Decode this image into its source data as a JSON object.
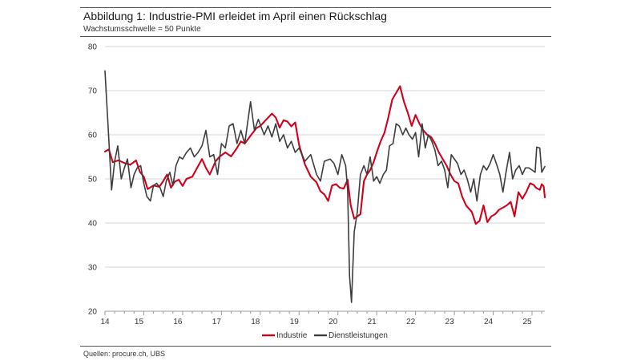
{
  "title": "Abbildung 1: Industrie-PMI erleidet im April einen Rückschlag",
  "subtitle": "Wachstumsschwelle = 50 Punkte",
  "source": "Quellen: procure.ch, UBS",
  "colors": {
    "industrie": "#d0021b",
    "dienstleistungen": "#3d3d3d",
    "grid": "#d6d6d6",
    "axis": "#999999"
  },
  "chart_data": {
    "type": "line",
    "title": "Abbildung 1: Industrie-PMI erleidet im April einen Rückschlag",
    "subtitle": "Wachstumsschwelle = 50 Punkte",
    "xlim": [
      2014,
      2025.33
    ],
    "ylim": [
      20,
      80
    ],
    "yticks": [
      "20",
      "30",
      "40",
      "50",
      "60",
      "70",
      "80"
    ],
    "xticks": [
      "14",
      "15",
      "16",
      "17",
      "18",
      "19",
      "20",
      "21",
      "22",
      "23",
      "24",
      "25"
    ],
    "grid": true,
    "legend_position": "bottom-center",
    "series": [
      {
        "name": "Industrie",
        "points": [
          [
            2014.0,
            56.2
          ],
          [
            2014.1,
            56.7
          ],
          [
            2014.2,
            53.8
          ],
          [
            2014.35,
            54.2
          ],
          [
            2014.5,
            53.6
          ],
          [
            2014.65,
            53.2
          ],
          [
            2014.8,
            54.2
          ],
          [
            2014.9,
            51.6
          ],
          [
            2015.0,
            50.5
          ],
          [
            2015.1,
            47.7
          ],
          [
            2015.25,
            48.5
          ],
          [
            2015.4,
            48.2
          ],
          [
            2015.5,
            49.5
          ],
          [
            2015.6,
            51.0
          ],
          [
            2015.7,
            48.0
          ],
          [
            2015.8,
            49.4
          ],
          [
            2015.9,
            49.8
          ],
          [
            2016.0,
            48.4
          ],
          [
            2016.1,
            50.0
          ],
          [
            2016.25,
            50.5
          ],
          [
            2016.4,
            52.9
          ],
          [
            2016.5,
            54.5
          ],
          [
            2016.6,
            52.5
          ],
          [
            2016.7,
            51.0
          ],
          [
            2016.85,
            54.0
          ],
          [
            2016.95,
            55.0
          ],
          [
            2017.1,
            56.0
          ],
          [
            2017.25,
            55.1
          ],
          [
            2017.4,
            57.0
          ],
          [
            2017.5,
            58.5
          ],
          [
            2017.6,
            58.0
          ],
          [
            2017.75,
            59.8
          ],
          [
            2017.9,
            61.5
          ],
          [
            2018.0,
            62.0
          ],
          [
            2018.15,
            63.4
          ],
          [
            2018.3,
            64.8
          ],
          [
            2018.4,
            63.9
          ],
          [
            2018.5,
            61.6
          ],
          [
            2018.6,
            63.3
          ],
          [
            2018.7,
            63.0
          ],
          [
            2018.8,
            61.9
          ],
          [
            2018.9,
            62.8
          ],
          [
            2019.0,
            57.7
          ],
          [
            2019.15,
            53.3
          ],
          [
            2019.3,
            50.5
          ],
          [
            2019.45,
            49.2
          ],
          [
            2019.55,
            47.2
          ],
          [
            2019.65,
            46.5
          ],
          [
            2019.75,
            45.0
          ],
          [
            2019.85,
            48.5
          ],
          [
            2019.95,
            48.8
          ],
          [
            2020.05,
            48.0
          ],
          [
            2020.15,
            47.8
          ],
          [
            2020.25,
            49.8
          ],
          [
            2020.33,
            44.0
          ],
          [
            2020.42,
            41.0
          ],
          [
            2020.5,
            41.5
          ],
          [
            2020.58,
            42.0
          ],
          [
            2020.67,
            49.5
          ],
          [
            2020.75,
            51.0
          ],
          [
            2020.83,
            52.0
          ],
          [
            2020.92,
            53.8
          ],
          [
            2021.0,
            56.0
          ],
          [
            2021.1,
            58.5
          ],
          [
            2021.2,
            60.5
          ],
          [
            2021.3,
            64.0
          ],
          [
            2021.4,
            68.0
          ],
          [
            2021.5,
            69.5
          ],
          [
            2021.6,
            71.0
          ],
          [
            2021.7,
            67.5
          ],
          [
            2021.8,
            65.0
          ],
          [
            2021.9,
            62.0
          ],
          [
            2022.0,
            64.5
          ],
          [
            2022.1,
            62.5
          ],
          [
            2022.2,
            61.0
          ],
          [
            2022.3,
            60.0
          ],
          [
            2022.4,
            59.5
          ],
          [
            2022.5,
            58.0
          ],
          [
            2022.6,
            56.0
          ],
          [
            2022.7,
            54.5
          ],
          [
            2022.8,
            53.0
          ],
          [
            2022.9,
            51.0
          ],
          [
            2023.0,
            49.5
          ],
          [
            2023.1,
            49.0
          ],
          [
            2023.2,
            46.0
          ],
          [
            2023.3,
            44.0
          ],
          [
            2023.45,
            42.5
          ],
          [
            2023.55,
            39.8
          ],
          [
            2023.65,
            40.5
          ],
          [
            2023.75,
            44.0
          ],
          [
            2023.85,
            40.2
          ],
          [
            2023.95,
            41.5
          ],
          [
            2024.05,
            42.0
          ],
          [
            2024.15,
            43.0
          ],
          [
            2024.25,
            43.5
          ],
          [
            2024.35,
            44.0
          ],
          [
            2024.45,
            44.8
          ],
          [
            2024.55,
            41.5
          ],
          [
            2024.65,
            47.0
          ],
          [
            2024.75,
            45.5
          ],
          [
            2024.85,
            47.0
          ],
          [
            2024.95,
            49.0
          ],
          [
            2025.05,
            48.6
          ],
          [
            2025.1,
            48.0
          ],
          [
            2025.2,
            47.5
          ],
          [
            2025.25,
            48.8
          ],
          [
            2025.3,
            48.3
          ],
          [
            2025.33,
            45.8
          ]
        ]
      },
      {
        "name": "Dienstleistungen",
        "points": [
          [
            2014.0,
            74.5
          ],
          [
            2014.08,
            62.0
          ],
          [
            2014.17,
            47.5
          ],
          [
            2014.25,
            54.0
          ],
          [
            2014.33,
            57.5
          ],
          [
            2014.42,
            50.0
          ],
          [
            2014.5,
            52.5
          ],
          [
            2014.58,
            54.5
          ],
          [
            2014.67,
            48.0
          ],
          [
            2014.75,
            51.0
          ],
          [
            2014.83,
            52.5
          ],
          [
            2014.92,
            53.0
          ],
          [
            2015.0,
            49.0
          ],
          [
            2015.08,
            46.0
          ],
          [
            2015.17,
            45.0
          ],
          [
            2015.25,
            48.5
          ],
          [
            2015.33,
            49.0
          ],
          [
            2015.42,
            48.0
          ],
          [
            2015.5,
            46.0
          ],
          [
            2015.58,
            49.5
          ],
          [
            2015.67,
            51.5
          ],
          [
            2015.75,
            48.5
          ],
          [
            2015.83,
            53.0
          ],
          [
            2015.92,
            55.0
          ],
          [
            2016.0,
            54.5
          ],
          [
            2016.1,
            56.0
          ],
          [
            2016.2,
            57.0
          ],
          [
            2016.3,
            55.0
          ],
          [
            2016.4,
            56.0
          ],
          [
            2016.5,
            57.5
          ],
          [
            2016.6,
            61.0
          ],
          [
            2016.7,
            55.0
          ],
          [
            2016.8,
            55.5
          ],
          [
            2016.9,
            51.0
          ],
          [
            2017.0,
            58.0
          ],
          [
            2017.1,
            57.0
          ],
          [
            2017.2,
            62.0
          ],
          [
            2017.3,
            62.5
          ],
          [
            2017.4,
            58.0
          ],
          [
            2017.5,
            61.0
          ],
          [
            2017.6,
            58.0
          ],
          [
            2017.75,
            67.5
          ],
          [
            2017.85,
            61.0
          ],
          [
            2017.95,
            63.5
          ],
          [
            2018.1,
            60.0
          ],
          [
            2018.2,
            62.0
          ],
          [
            2018.3,
            59.5
          ],
          [
            2018.4,
            62.5
          ],
          [
            2018.5,
            58.5
          ],
          [
            2018.6,
            60.0
          ],
          [
            2018.7,
            57.0
          ],
          [
            2018.8,
            58.5
          ],
          [
            2018.9,
            56.0
          ],
          [
            2019.0,
            57.0
          ],
          [
            2019.15,
            54.0
          ],
          [
            2019.3,
            55.5
          ],
          [
            2019.45,
            51.0
          ],
          [
            2019.55,
            49.5
          ],
          [
            2019.65,
            54.0
          ],
          [
            2019.8,
            54.5
          ],
          [
            2019.9,
            53.5
          ],
          [
            2020.0,
            51.0
          ],
          [
            2020.1,
            55.5
          ],
          [
            2020.2,
            53.0
          ],
          [
            2020.25,
            47.5
          ],
          [
            2020.3,
            28.0
          ],
          [
            2020.35,
            22.0
          ],
          [
            2020.42,
            38.0
          ],
          [
            2020.5,
            42.5
          ],
          [
            2020.58,
            51.0
          ],
          [
            2020.67,
            53.0
          ],
          [
            2020.75,
            51.0
          ],
          [
            2020.83,
            55.0
          ],
          [
            2020.92,
            49.5
          ],
          [
            2021.0,
            50.5
          ],
          [
            2021.08,
            49.0
          ],
          [
            2021.17,
            51.0
          ],
          [
            2021.25,
            52.0
          ],
          [
            2021.33,
            57.5
          ],
          [
            2021.42,
            58.0
          ],
          [
            2021.5,
            62.5
          ],
          [
            2021.58,
            62.0
          ],
          [
            2021.67,
            60.0
          ],
          [
            2021.75,
            61.5
          ],
          [
            2021.83,
            60.0
          ],
          [
            2021.92,
            59.0
          ],
          [
            2022.0,
            60.5
          ],
          [
            2022.08,
            55.0
          ],
          [
            2022.17,
            62.5
          ],
          [
            2022.25,
            57.0
          ],
          [
            2022.33,
            60.0
          ],
          [
            2022.42,
            58.5
          ],
          [
            2022.5,
            56.5
          ],
          [
            2022.58,
            53.0
          ],
          [
            2022.67,
            54.0
          ],
          [
            2022.75,
            52.0
          ],
          [
            2022.83,
            48.0
          ],
          [
            2022.92,
            55.5
          ],
          [
            2023.0,
            54.5
          ],
          [
            2023.08,
            53.5
          ],
          [
            2023.17,
            51.0
          ],
          [
            2023.25,
            52.0
          ],
          [
            2023.33,
            50.0
          ],
          [
            2023.42,
            47.0
          ],
          [
            2023.5,
            50.0
          ],
          [
            2023.58,
            45.0
          ],
          [
            2023.67,
            51.0
          ],
          [
            2023.75,
            53.0
          ],
          [
            2023.83,
            52.0
          ],
          [
            2023.92,
            53.5
          ],
          [
            2024.0,
            55.5
          ],
          [
            2024.08,
            53.5
          ],
          [
            2024.17,
            51.0
          ],
          [
            2024.25,
            47.0
          ],
          [
            2024.33,
            51.5
          ],
          [
            2024.42,
            56.0
          ],
          [
            2024.5,
            50.0
          ],
          [
            2024.58,
            52.0
          ],
          [
            2024.67,
            53.0
          ],
          [
            2024.75,
            51.0
          ],
          [
            2024.83,
            52.5
          ],
          [
            2024.92,
            52.5
          ],
          [
            2025.0,
            52.0
          ],
          [
            2025.08,
            51.5
          ],
          [
            2025.12,
            57.2
          ],
          [
            2025.2,
            57.0
          ],
          [
            2025.25,
            51.5
          ],
          [
            2025.33,
            52.8
          ]
        ]
      }
    ]
  }
}
